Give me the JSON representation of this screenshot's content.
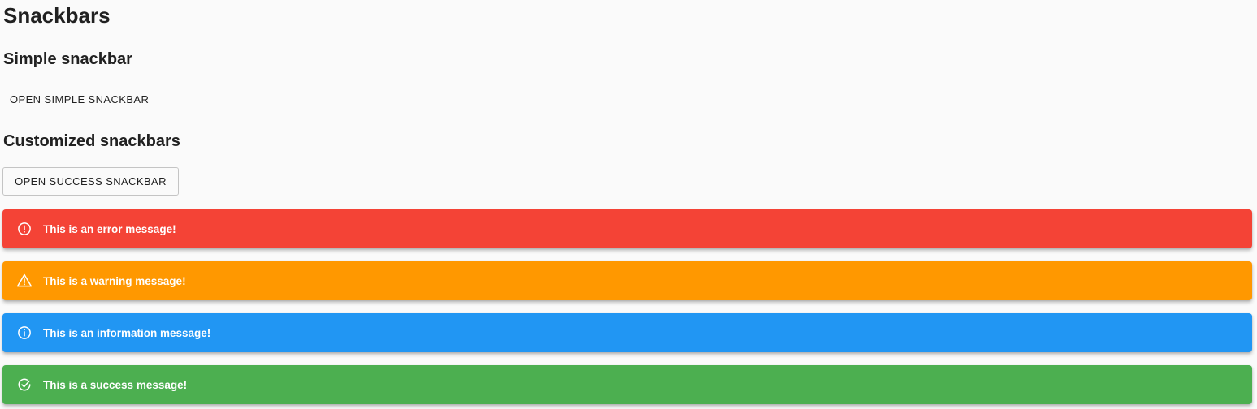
{
  "page": {
    "title": "Snackbars"
  },
  "simple": {
    "title": "Simple snackbar",
    "button_label": "OPEN SIMPLE SNACKBAR"
  },
  "custom": {
    "title": "Customized snackbars",
    "button_label": "OPEN SUCCESS SNACKBAR"
  },
  "snackbars": [
    {
      "type": "error",
      "icon": "error-outline-icon",
      "color": "#f44336",
      "message": "This is an error message!"
    },
    {
      "type": "warning",
      "icon": "warning-outline-icon",
      "color": "#ff9800",
      "message": "This is a warning message!"
    },
    {
      "type": "info",
      "icon": "info-outline-icon",
      "color": "#2196f3",
      "message": "This is an information message!"
    },
    {
      "type": "success",
      "icon": "check-circle-outline-icon",
      "color": "#4caf50",
      "message": "This is a success message!"
    }
  ]
}
